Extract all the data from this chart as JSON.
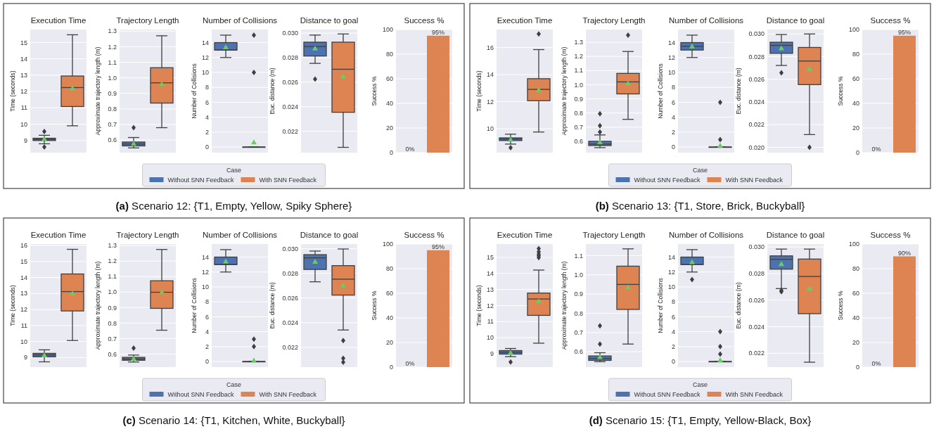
{
  "chart_data": [
    {
      "type": "box",
      "title": "Execution Time",
      "ylabel": "Time (seconds)",
      "categories": [
        null,
        null
      ],
      "ylim": [
        8.26,
        15.79
      ],
      "yticks": [
        9,
        10,
        11,
        12,
        13,
        14,
        15
      ],
      "grid": "y",
      "tick_labels": "y",
      "annotations": [
        "(a) Scenario 12: {T1, Empty, Yellow, Spiky Sphere}"
      ],
      "series": [
        {
          "color": "#4c72b0",
          "boxes": [
            {
              "low": 8.8,
              "q1": 9.0,
              "median": 9.07,
              "q3": 9.14,
              "high": 9.32,
              "mean": 9.1,
              "outliers": [
                9.55,
                8.6
              ]
            },
            null
          ]
        },
        {
          "color": "#dd8452",
          "boxes": [
            null,
            {
              "low": 9.9,
              "q1": 11.08,
              "median": 12.24,
              "q3": 12.95,
              "high": 15.47,
              "mean": 12.2
            }
          ]
        }
      ]
    },
    {
      "type": "box",
      "title": "Trajectory Length",
      "ylabel": "Approximate trajectory length (m)",
      "categories": [
        null,
        null
      ],
      "ylim": [
        0.52,
        1.31
      ],
      "yticks": [
        0.6,
        0.7,
        0.8,
        0.9,
        {
          "value": 1,
          "label": "1.0"
        },
        1.1,
        1.2,
        1.3
      ],
      "grid": "y",
      "tick_labels": "y",
      "series": [
        {
          "color": "#4c72b0",
          "boxes": [
            {
              "low": 0.55,
              "q1": 0.563,
              "median": 0.575,
              "q3": 0.588,
              "high": 0.617,
              "mean": 0.578,
              "outliers": [
                0.68
              ]
            },
            null
          ]
        },
        {
          "color": "#dd8452",
          "boxes": [
            null,
            {
              "low": 0.68,
              "q1": 0.838,
              "median": 0.968,
              "q3": 1.065,
              "high": 1.27,
              "mean": 0.96
            }
          ]
        }
      ]
    },
    {
      "type": "box",
      "title": "Number of Collisions",
      "ylabel": "Number of Collisions",
      "categories": [
        null,
        null
      ],
      "ylim": [
        -0.75,
        15.75
      ],
      "yticks": [
        0,
        2,
        4,
        6,
        8,
        10,
        12,
        14
      ],
      "grid": "y",
      "tick_labels": "y",
      "legend": "bottom",
      "legend_title": "Case",
      "series": [
        {
          "name": "Without SNN Feedback",
          "color": "#4c72b0",
          "boxes": [
            {
              "low": 12,
              "q1": 13,
              "median": 13,
              "q3": 14,
              "high": 15,
              "mean": 13.4
            },
            null
          ]
        },
        {
          "name": "With SNN Feedback",
          "color": "#dd8452",
          "boxes": [
            null,
            {
              "low": 0,
              "q1": 0,
              "median": 0,
              "q3": 0,
              "high": 0,
              "mean": 0.65,
              "outliers": [
                10,
                15
              ]
            }
          ]
        }
      ]
    },
    {
      "type": "box",
      "title": "Distance to goal",
      "ylabel": "Euc. distance (m)",
      "categories": [
        null,
        null
      ],
      "ylim": [
        0.02025,
        0.03029
      ],
      "yticks": [
        {
          "value": 0.022,
          "label": "0.022"
        },
        {
          "value": 0.024,
          "label": "0.024"
        },
        {
          "value": 0.026,
          "label": "0.026"
        },
        {
          "value": 0.028,
          "label": "0.028"
        },
        {
          "value": 0.03,
          "label": "0.030"
        }
      ],
      "grid": "y",
      "tick_labels": "y",
      "series": [
        {
          "color": "#4c72b0",
          "boxes": [
            {
              "low": 0.02753,
              "q1": 0.02813,
              "median": 0.0289,
              "q3": 0.02926,
              "high": 0.02984,
              "mean": 0.02875,
              "outliers": [
                0.02625
              ]
            },
            null
          ]
        },
        {
          "color": "#dd8452",
          "boxes": [
            null,
            {
              "low": 0.02068,
              "q1": 0.02354,
              "median": 0.02705,
              "q3": 0.02926,
              "high": 0.02993,
              "mean": 0.02647
            }
          ]
        }
      ]
    },
    {
      "type": "bar",
      "title": "Success %",
      "ylabel": "Success %",
      "categories": [
        null,
        null
      ],
      "values": [
        0,
        95
      ],
      "colors": [
        "#4c72b0",
        "#dd8452"
      ],
      "value_labels": [
        "0%",
        "95%"
      ],
      "ylim": [
        0,
        100
      ],
      "yticks": [
        0,
        20,
        40,
        60,
        80,
        100
      ],
      "grid": "y",
      "tick_labels": "y"
    },
    {
      "type": "box",
      "title": "Execution Time",
      "ylabel": "Time (seconds)",
      "categories": [
        null,
        null
      ],
      "ylim": [
        8.24,
        17.33
      ],
      "yticks": [
        10,
        12,
        14,
        16
      ],
      "grid": "y",
      "tick_labels": "y",
      "annotations": [
        "(b) Scenario 13: {T1, Store, Brick, Buckyball}"
      ],
      "series": [
        {
          "color": "#4c72b0",
          "boxes": [
            {
              "low": 8.87,
              "q1": 9.13,
              "median": 9.24,
              "q3": 9.33,
              "high": 9.6,
              "mean": 9.2,
              "outliers": [
                8.61
              ]
            },
            null
          ]
        },
        {
          "color": "#dd8452",
          "boxes": [
            null,
            {
              "low": 9.76,
              "q1": 12.07,
              "median": 12.91,
              "q3": 13.7,
              "high": 15.85,
              "mean": 12.87,
              "outliers": [
                17.0
              ]
            }
          ]
        }
      ]
    },
    {
      "type": "box",
      "title": "Trajectory Length",
      "ylabel": "Approximate trajectory length (m)",
      "categories": [
        null,
        null
      ],
      "ylim": [
        0.52,
        1.39
      ],
      "yticks": [
        0.6,
        0.7,
        0.8,
        0.9,
        {
          "value": 1,
          "label": "1.0"
        },
        1.1,
        1.2,
        1.3
      ],
      "grid": "y",
      "tick_labels": "y",
      "series": [
        {
          "color": "#4c72b0",
          "boxes": [
            {
              "low": 0.555,
              "q1": 0.57,
              "median": 0.58,
              "q3": 0.6,
              "high": 0.645,
              "mean": 0.595,
              "outliers": [
                0.665,
                0.71,
                0.795
              ]
            },
            null
          ]
        },
        {
          "color": "#dd8452",
          "boxes": [
            null,
            {
              "low": 0.755,
              "q1": 0.935,
              "median": 1.02,
              "q3": 1.08,
              "high": 1.235,
              "mean": 1.01,
              "outliers": [
                1.35
              ]
            }
          ]
        }
      ]
    },
    {
      "type": "box",
      "title": "Number of Collisions",
      "ylabel": "Number of Collisions",
      "categories": [
        null,
        null
      ],
      "ylim": [
        -0.75,
        15.75
      ],
      "yticks": [
        0,
        2,
        4,
        6,
        8,
        10,
        12,
        14
      ],
      "grid": "y",
      "tick_labels": "y",
      "legend": "bottom",
      "legend_title": "Case",
      "series": [
        {
          "name": "Without SNN Feedback",
          "color": "#4c72b0",
          "boxes": [
            {
              "low": 12,
              "q1": 13,
              "median": 13.5,
              "q3": 14,
              "high": 15,
              "mean": 13.5
            },
            null
          ]
        },
        {
          "name": "With SNN Feedback",
          "color": "#dd8452",
          "boxes": [
            null,
            {
              "low": 0,
              "q1": 0,
              "median": 0,
              "q3": 0,
              "high": 0,
              "mean": 0.2,
              "outliers": [
                1,
                6
              ]
            }
          ]
        }
      ]
    },
    {
      "type": "box",
      "title": "Distance to goal",
      "ylabel": "Euc. distance (m)",
      "categories": [
        null,
        null
      ],
      "ylim": [
        0.01953,
        0.03039
      ],
      "yticks": [
        {
          "value": 0.02,
          "label": "0.020"
        },
        {
          "value": 0.022,
          "label": "0.022"
        },
        {
          "value": 0.024,
          "label": "0.024"
        },
        {
          "value": 0.026,
          "label": "0.026"
        },
        {
          "value": 0.028,
          "label": "0.028"
        },
        {
          "value": 0.03,
          "label": "0.030"
        }
      ],
      "grid": "y",
      "tick_labels": "y",
      "series": [
        {
          "color": "#4c72b0",
          "boxes": [
            {
              "low": 0.02722,
              "q1": 0.02829,
              "median": 0.02899,
              "q3": 0.02927,
              "high": 0.02995,
              "mean": 0.02875,
              "outliers": [
                0.02657
              ]
            },
            null
          ]
        },
        {
          "color": "#dd8452",
          "boxes": [
            null,
            {
              "low": 0.02112,
              "q1": 0.02553,
              "median": 0.02761,
              "q3": 0.02881,
              "high": 0.03,
              "mean": 0.0269,
              "outliers": [
                0.02
              ]
            }
          ]
        }
      ]
    },
    {
      "type": "bar",
      "title": "Success %",
      "ylabel": "Success %",
      "categories": [
        null,
        null
      ],
      "values": [
        0,
        95
      ],
      "colors": [
        "#4c72b0",
        "#dd8452"
      ],
      "value_labels": [
        "0%",
        "95%"
      ],
      "ylim": [
        0,
        100
      ],
      "yticks": [
        0,
        20,
        40,
        60,
        80,
        100
      ],
      "grid": "y",
      "tick_labels": "y"
    },
    {
      "type": "box",
      "title": "Execution Time",
      "ylabel": "Time (seconds)",
      "categories": [
        null,
        null
      ],
      "ylim": [
        8.4,
        16.09
      ],
      "yticks": [
        9,
        10,
        11,
        12,
        13,
        14,
        15,
        16
      ],
      "grid": "y",
      "tick_labels": "y",
      "annotations": [
        "(c) Scenario 14: {T1, Kitchen, White, Buckyball}"
      ],
      "series": [
        {
          "color": "#4c72b0",
          "boxes": [
            {
              "low": 8.73,
              "q1": 9.04,
              "median": 9.16,
              "q3": 9.26,
              "high": 9.48,
              "mean": 9.15
            },
            null
          ]
        },
        {
          "color": "#dd8452",
          "boxes": [
            null,
            {
              "low": 10.06,
              "q1": 11.91,
              "median": 13.12,
              "q3": 14.22,
              "high": 15.76,
              "mean": 13.01
            }
          ]
        }
      ]
    },
    {
      "type": "box",
      "title": "Trajectory Length",
      "ylabel": "Approximate trajectory length (m)",
      "categories": [
        null,
        null
      ],
      "ylim": [
        0.516,
        1.31
      ],
      "yticks": [
        0.6,
        0.7,
        0.8,
        0.9,
        {
          "value": 1,
          "label": "1.0"
        },
        1.1,
        1.2,
        1.3
      ],
      "grid": "y",
      "tick_labels": "y",
      "series": [
        {
          "color": "#4c72b0",
          "boxes": [
            {
              "low": 0.549,
              "q1": 0.56,
              "median": 0.568,
              "q3": 0.579,
              "high": 0.594,
              "mean": 0.57,
              "outliers": [
                0.638
              ]
            },
            null
          ]
        },
        {
          "color": "#dd8452",
          "boxes": [
            null,
            {
              "low": 0.754,
              "q1": 0.895,
              "median": 0.999,
              "q3": 1.073,
              "high": 1.275,
              "mean": 1.0
            }
          ]
        }
      ]
    },
    {
      "type": "box",
      "title": "Number of Collisions",
      "ylabel": "Number of Collisions",
      "categories": [
        null,
        null
      ],
      "ylim": [
        -0.75,
        15.75
      ],
      "yticks": [
        0,
        2,
        4,
        6,
        8,
        10,
        12,
        14
      ],
      "grid": "y",
      "tick_labels": "y",
      "legend": "bottom",
      "legend_title": "Case",
      "series": [
        {
          "name": "Without SNN Feedback",
          "color": "#4c72b0",
          "boxes": [
            {
              "low": 12,
              "q1": 13,
              "median": 13,
              "q3": 14,
              "high": 15,
              "mean": 13.45
            },
            null
          ]
        },
        {
          "name": "With SNN Feedback",
          "color": "#dd8452",
          "boxes": [
            null,
            {
              "low": 0,
              "q1": 0,
              "median": 0,
              "q3": 0,
              "high": 0,
              "mean": 0.15,
              "outliers": [
                2,
                3
              ]
            }
          ]
        }
      ]
    },
    {
      "type": "box",
      "title": "Distance to goal",
      "ylabel": "Euc. distance (m)",
      "categories": [
        null,
        null
      ],
      "ylim": [
        0.0204,
        0.03038
      ],
      "yticks": [
        {
          "value": 0.022,
          "label": "0.022"
        },
        {
          "value": 0.024,
          "label": "0.024"
        },
        {
          "value": 0.026,
          "label": "0.026"
        },
        {
          "value": 0.028,
          "label": "0.028"
        },
        {
          "value": 0.03,
          "label": "0.030"
        }
      ],
      "grid": "y",
      "tick_labels": "y",
      "series": [
        {
          "color": "#4c72b0",
          "boxes": [
            {
              "low": 0.02732,
              "q1": 0.02832,
              "median": 0.02926,
              "q3": 0.02952,
              "high": 0.02981,
              "mean": 0.02895
            },
            null
          ]
        },
        {
          "color": "#dd8452",
          "boxes": [
            null,
            {
              "low": 0.02341,
              "q1": 0.02624,
              "median": 0.02753,
              "q3": 0.02863,
              "high": 0.02998,
              "mean": 0.02703,
              "outliers": [
                0.02255,
                0.02111,
                0.0208
              ]
            }
          ]
        }
      ]
    },
    {
      "type": "bar",
      "title": "Success %",
      "ylabel": "Success %",
      "categories": [
        null,
        null
      ],
      "values": [
        0,
        95
      ],
      "colors": [
        "#4c72b0",
        "#dd8452"
      ],
      "value_labels": [
        "0%",
        "95%"
      ],
      "ylim": [
        0,
        100
      ],
      "yticks": [
        0,
        20,
        40,
        60,
        80,
        100
      ],
      "grid": "y",
      "tick_labels": "y"
    },
    {
      "type": "box",
      "title": "Execution Time",
      "ylabel": "Time (seconds)",
      "categories": [
        null,
        null
      ],
      "ylim": [
        8.17,
        15.83
      ],
      "yticks": [
        9,
        10,
        11,
        12,
        13,
        14,
        15
      ],
      "grid": "y",
      "tick_labels": "y",
      "annotations": [
        "(d) Scenario 15: {T1, Empty, Yellow-Black, Box}"
      ],
      "series": [
        {
          "color": "#4c72b0",
          "boxes": [
            {
              "low": 8.82,
              "q1": 8.98,
              "median": 9.09,
              "q3": 9.2,
              "high": 9.33,
              "mean": 9.07,
              "outliers": [
                8.49
              ]
            },
            null
          ]
        },
        {
          "color": "#dd8452",
          "boxes": [
            null,
            {
              "low": 9.66,
              "q1": 11.39,
              "median": 12.41,
              "q3": 12.78,
              "high": 14.21,
              "mean": 12.27,
              "outliers": [
                14.99,
                15.1,
                15.2,
                15.35,
                15.55
              ]
            }
          ]
        }
      ]
    },
    {
      "type": "box",
      "title": "Trajectory Length",
      "ylabel": "Approximate trajectory length (m)",
      "categories": [
        null,
        null
      ],
      "ylim": [
        0.52,
        1.16
      ],
      "yticks": [
        0.6,
        0.7,
        0.8,
        0.9,
        {
          "value": 1,
          "label": "1.0"
        },
        1.1
      ],
      "grid": "y",
      "tick_labels": "y",
      "series": [
        {
          "color": "#4c72b0",
          "boxes": [
            {
              "low": 0.548,
              "q1": 0.555,
              "median": 0.565,
              "q3": 0.578,
              "high": 0.595,
              "mean": 0.573,
              "outliers": [
                0.64,
                0.735
              ]
            },
            null
          ]
        },
        {
          "color": "#dd8452",
          "boxes": [
            null,
            {
              "low": 0.64,
              "q1": 0.82,
              "median": 0.95,
              "q3": 1.045,
              "high": 1.135,
              "mean": 0.935
            }
          ]
        }
      ]
    },
    {
      "type": "box",
      "title": "Number of Collisions",
      "ylabel": "Number of Collisions",
      "categories": [
        null,
        null
      ],
      "ylim": [
        -0.75,
        15.75
      ],
      "yticks": [
        0,
        2,
        4,
        6,
        8,
        10,
        12,
        14
      ],
      "grid": "y",
      "tick_labels": "y",
      "legend": "bottom",
      "legend_title": "Case",
      "series": [
        {
          "name": "Without SNN Feedback",
          "color": "#4c72b0",
          "boxes": [
            {
              "low": 12,
              "q1": 13,
              "median": 13,
              "q3": 14,
              "high": 15,
              "mean": 13.35,
              "outliers": [
                11
              ]
            },
            null
          ]
        },
        {
          "name": "With SNN Feedback",
          "color": "#dd8452",
          "boxes": [
            null,
            {
              "low": 0,
              "q1": 0,
              "median": 0,
              "q3": 0,
              "high": 0,
              "mean": 0.2,
              "outliers": [
                1,
                2,
                4
              ]
            }
          ]
        }
      ]
    },
    {
      "type": "box",
      "title": "Distance to goal",
      "ylabel": "Euc. distance (m)",
      "categories": [
        null,
        null
      ],
      "ylim": [
        0.02096,
        0.03022
      ],
      "yticks": [
        {
          "value": 0.022,
          "label": "0.022"
        },
        {
          "value": 0.024,
          "label": "0.024"
        },
        {
          "value": 0.026,
          "label": "0.026"
        },
        {
          "value": 0.028,
          "label": "0.028"
        },
        {
          "value": 0.03,
          "label": "0.030"
        }
      ],
      "grid": "y",
      "tick_labels": "y",
      "series": [
        {
          "color": "#4c72b0",
          "boxes": [
            {
              "low": 0.02687,
              "q1": 0.02833,
              "median": 0.02907,
              "q3": 0.02933,
              "high": 0.02984,
              "mean": 0.02873,
              "outliers": [
                0.02664,
                0.02673
              ]
            },
            null
          ]
        },
        {
          "color": "#dd8452",
          "boxes": [
            null,
            {
              "low": 0.02133,
              "q1": 0.02498,
              "median": 0.02778,
              "q3": 0.02909,
              "high": 0.02984,
              "mean": 0.02687
            }
          ]
        }
      ]
    },
    {
      "type": "bar",
      "title": "Success %",
      "ylabel": "Success %",
      "categories": [
        null,
        null
      ],
      "values": [
        0,
        90
      ],
      "colors": [
        "#4c72b0",
        "#dd8452"
      ],
      "value_labels": [
        "0%",
        "90%"
      ],
      "ylim": [
        0,
        100
      ],
      "yticks": [
        0,
        20,
        40,
        60,
        80,
        100
      ],
      "grid": "y",
      "tick_labels": "y"
    }
  ]
}
